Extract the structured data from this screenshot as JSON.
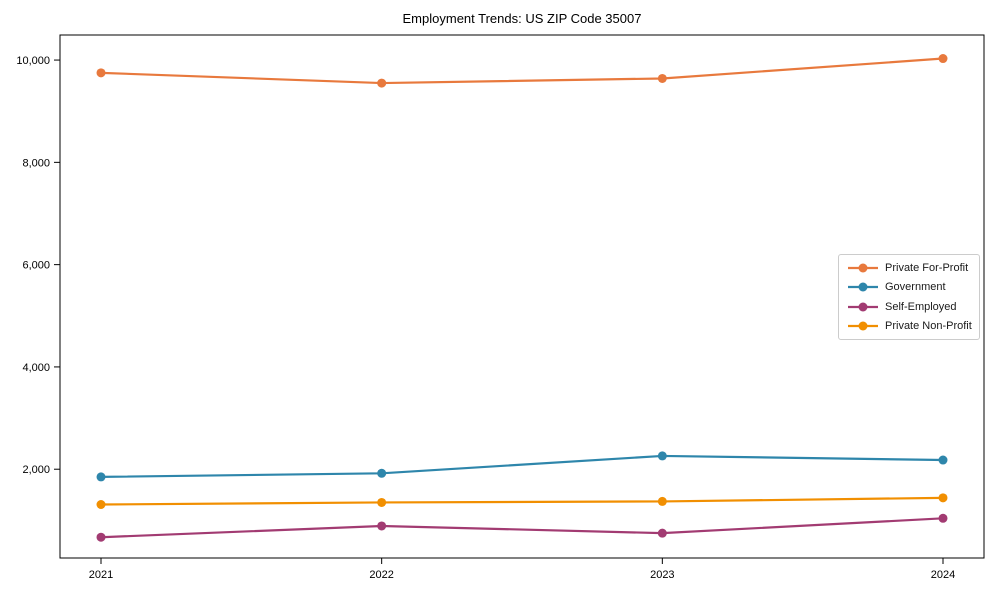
{
  "chart_data": {
    "type": "line",
    "title": "Employment Trends: US ZIP Code 35007",
    "xlabel": "",
    "ylabel": "",
    "categories": [
      "2021",
      "2022",
      "2023",
      "2024"
    ],
    "series": [
      {
        "name": "Private For-Profit",
        "color": "#E8793D",
        "values": [
          9750,
          9550,
          9640,
          10030
        ]
      },
      {
        "name": "Government",
        "color": "#2E86AB",
        "values": [
          1850,
          1920,
          2260,
          2180
        ]
      },
      {
        "name": "Self-Employed",
        "color": "#A23B72",
        "values": [
          670,
          890,
          750,
          1040
        ]
      },
      {
        "name": "Private Non-Profit",
        "color": "#F18F01",
        "values": [
          1310,
          1350,
          1370,
          1440
        ]
      }
    ],
    "ylim": [
      264,
      10490
    ],
    "yticks": {
      "values": [
        2000,
        4000,
        6000,
        8000,
        10000
      ],
      "labels": [
        "2,000",
        "4,000",
        "6,000",
        "8,000",
        "10,000"
      ]
    },
    "grid": false,
    "legend_position": "center-right",
    "axis_color": "#000000"
  }
}
